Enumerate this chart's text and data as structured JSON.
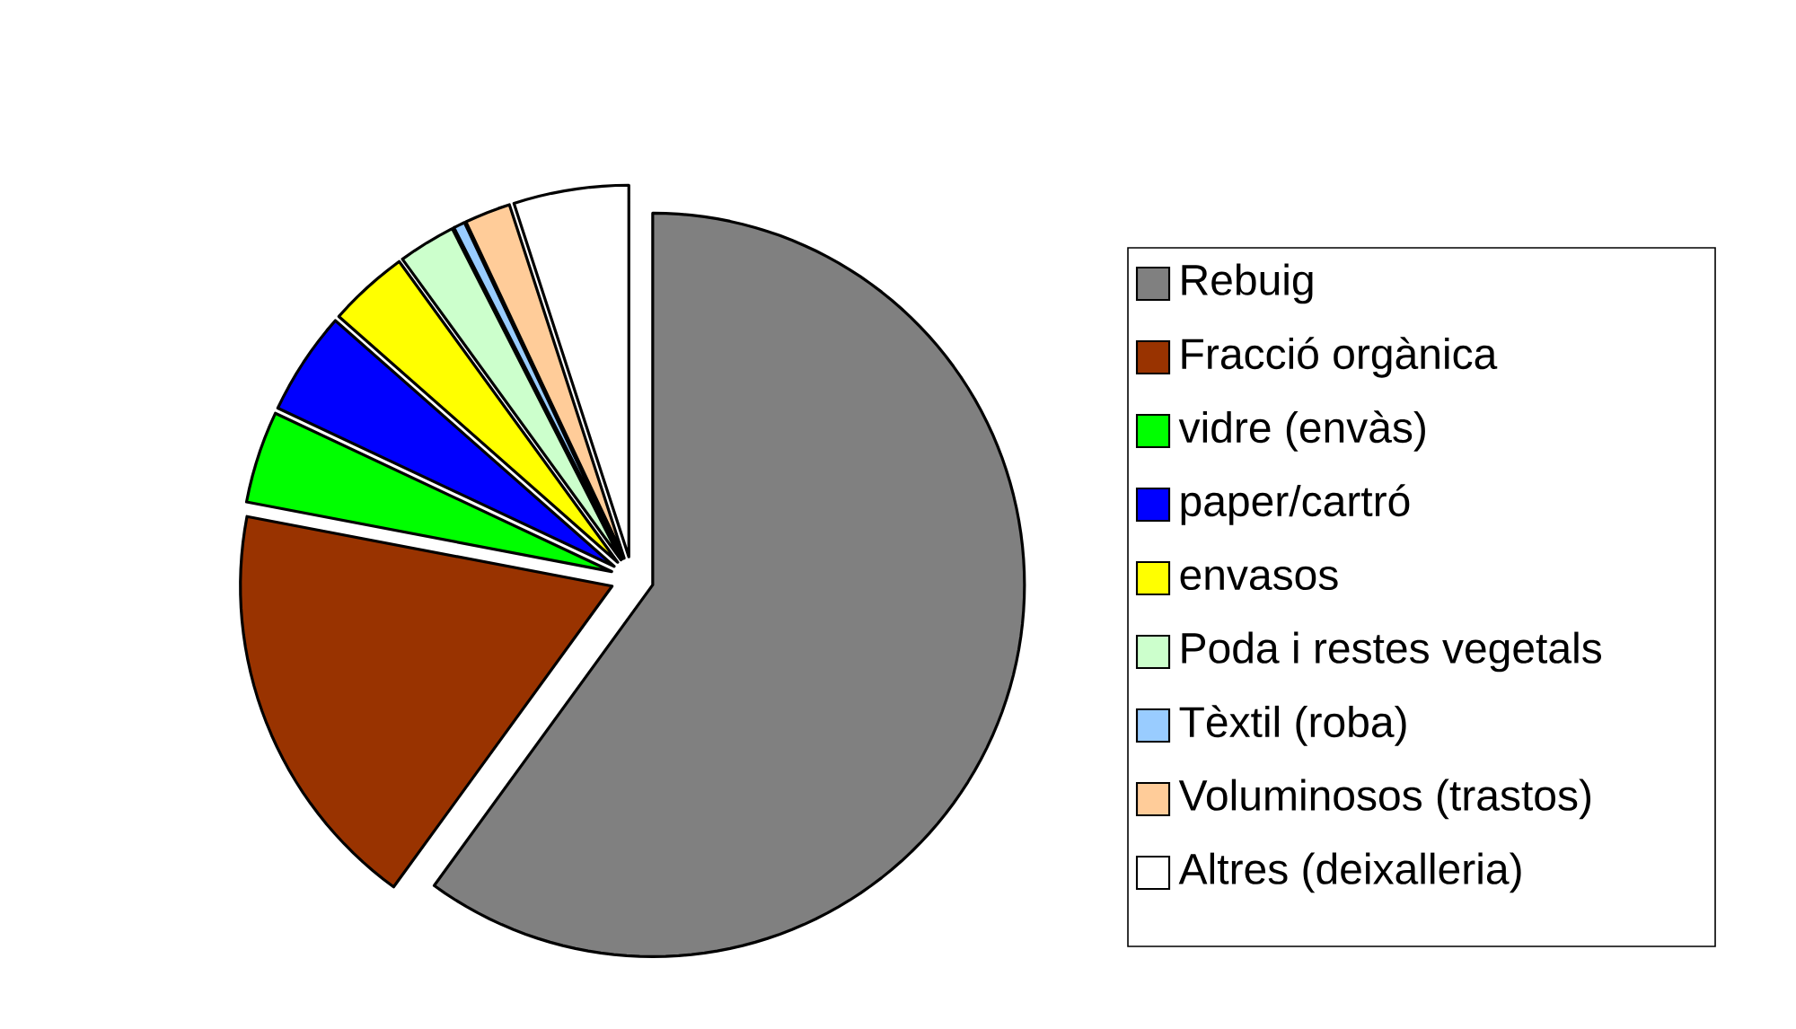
{
  "chart_data": {
    "type": "pie",
    "categories": [
      "Rebuig",
      "Fracció orgànica",
      "vidre (envàs)",
      "paper/cartró",
      "envasos",
      "Poda i restes vegetals",
      "Tèxtil (roba)",
      "Voluminosos (trastos)",
      "Altres (deixalleria)"
    ],
    "values": [
      60,
      18,
      4,
      4.5,
      3.5,
      2.5,
      0.5,
      2,
      5
    ],
    "colors": [
      "#808080",
      "#993300",
      "#00ff00",
      "#0000ff",
      "#ffff00",
      "#ccffcc",
      "#99ccff",
      "#ffcc99",
      "#ffffff"
    ],
    "legend": "right"
  }
}
